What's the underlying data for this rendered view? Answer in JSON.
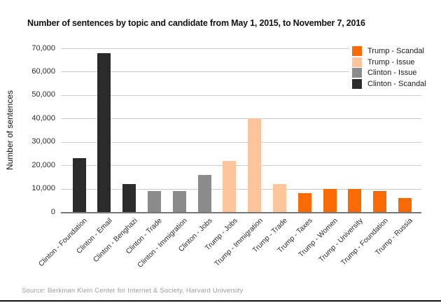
{
  "source": {
    "text": "Source: Berkman Klein Center for Internet & Society, Harvard University"
  },
  "colors": {
    "trump_scandal": "#f96a02",
    "trump_issue": "#fdc59b",
    "clinton_issue": "#8b8b8b",
    "clinton_scandal": "#2b2b2b",
    "gridline": "#cccccc",
    "axis_line": "#777777",
    "source_text": "#9c9c9c",
    "bottom_border": "#111111"
  },
  "chart_data": {
    "type": "bar",
    "title": "Number of sentences by topic and candidate from May 1, 2015, to November 7, 2016",
    "xlabel": "",
    "ylabel": "Number of sentences",
    "ylim": [
      0,
      70000
    ],
    "grid": "horizontal",
    "legend_position": "top-right",
    "yticks": [
      {
        "value": 0,
        "label": "0"
      },
      {
        "value": 10000,
        "label": "10,000"
      },
      {
        "value": 20000,
        "label": "20,000"
      },
      {
        "value": 30000,
        "label": "30,000"
      },
      {
        "value": 40000,
        "label": "40,000"
      },
      {
        "value": 50000,
        "label": "50,000"
      },
      {
        "value": 60000,
        "label": "60,000"
      },
      {
        "value": 70000,
        "label": "70,000"
      }
    ],
    "legend": [
      {
        "label": "Trump - Scandal",
        "color": "#f96a02"
      },
      {
        "label": "Trump - Issue",
        "color": "#fdc59b"
      },
      {
        "label": "Clinton - Issue",
        "color": "#8b8b8b"
      },
      {
        "label": "Clinton - Scandal",
        "color": "#2b2b2b"
      }
    ],
    "bars": [
      {
        "category": "Clinton - Foundation",
        "group": "Clinton - Scandal",
        "value": 23000
      },
      {
        "category": "Clinton - Email",
        "group": "Clinton - Scandal",
        "value": 68000
      },
      {
        "category": "Clinton - Benghazi",
        "group": "Clinton - Scandal",
        "value": 12000
      },
      {
        "category": "Clinton - Trade",
        "group": "Clinton - Issue",
        "value": 9000
      },
      {
        "category": "Clinton - Immigration",
        "group": "Clinton - Issue",
        "value": 9000
      },
      {
        "category": "Clinton - Jobs",
        "group": "Clinton - Issue",
        "value": 16000
      },
      {
        "category": "Trump - Jobs",
        "group": "Trump - Issue",
        "value": 22000
      },
      {
        "category": "Trump - Immigration",
        "group": "Trump - Issue",
        "value": 40000
      },
      {
        "category": "Trump - Trade",
        "group": "Trump - Issue",
        "value": 12000
      },
      {
        "category": "Trump - Taxes",
        "group": "Trump - Scandal",
        "value": 8000
      },
      {
        "category": "Trump - Women",
        "group": "Trump - Scandal",
        "value": 10000
      },
      {
        "category": "Trump - University",
        "group": "Trump - Scandal",
        "value": 10000
      },
      {
        "category": "Trump - Foundation",
        "group": "Trump - Scandal",
        "value": 9000
      },
      {
        "category": "Trump - Russia",
        "group": "Trump - Scandal",
        "value": 6000
      }
    ]
  }
}
